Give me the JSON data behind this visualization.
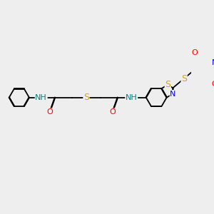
{
  "bg_color": "#eeeeee",
  "atom_colors": {
    "N": "#0000ff",
    "O": "#ff0000",
    "S": "#ccaa00",
    "NH": "#008080",
    "C": "#000000"
  },
  "bond_lw": 1.3,
  "dbo": 0.012,
  "font_size": 8.0,
  "fig_size": [
    3.0,
    3.0
  ],
  "dpi": 100,
  "xlim": [
    0,
    10
  ],
  "ylim": [
    0,
    10
  ]
}
